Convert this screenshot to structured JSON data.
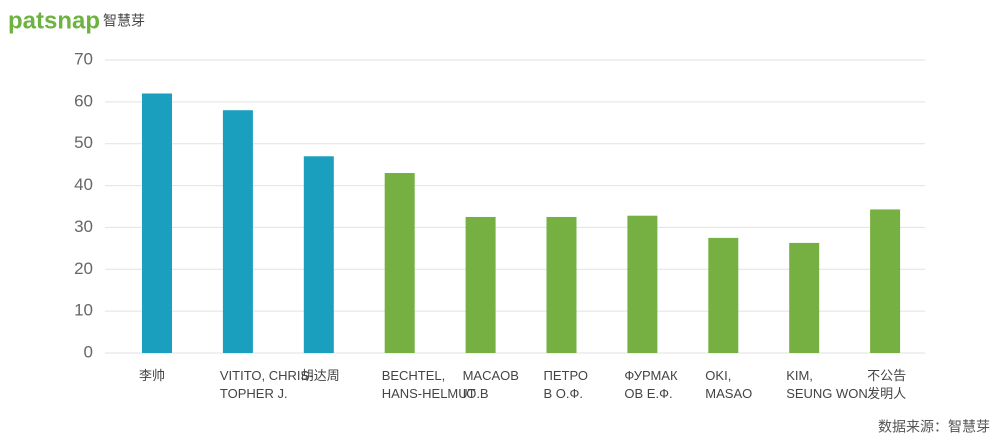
{
  "logo": {
    "brand": "patsnap",
    "name": "智慧芽"
  },
  "source": "数据来源：智慧芽",
  "chart_data": {
    "type": "bar",
    "categories": [
      [
        "李帅"
      ],
      [
        "VITITO, CHRIS-",
        "TOPHER J."
      ],
      [
        "胡达周"
      ],
      [
        "BECHTEL,",
        "HANS-HELMUT"
      ],
      [
        "MACAOB",
        "IO.B"
      ],
      [
        "ПЕТРО",
        "В О.Ф."
      ],
      [
        "ФУРМАК",
        "ОВ Е.Ф."
      ],
      [
        "OKI,",
        "MASAO"
      ],
      [
        "KIM,",
        "SEUNG WON"
      ],
      [
        "不公告",
        "发明人"
      ]
    ],
    "values": [
      62,
      58,
      47,
      43,
      32.5,
      32.5,
      32.8,
      27.5,
      26.3,
      34.3
    ],
    "colors": [
      "#1a9fbf",
      "#1a9fbf",
      "#1a9fbf",
      "#76b043",
      "#76b043",
      "#76b043",
      "#76b043",
      "#76b043",
      "#76b043",
      "#76b043"
    ],
    "ylim": [
      0,
      70
    ],
    "yticks": [
      0,
      10,
      20,
      30,
      40,
      50,
      60,
      70
    ],
    "grid": true
  }
}
